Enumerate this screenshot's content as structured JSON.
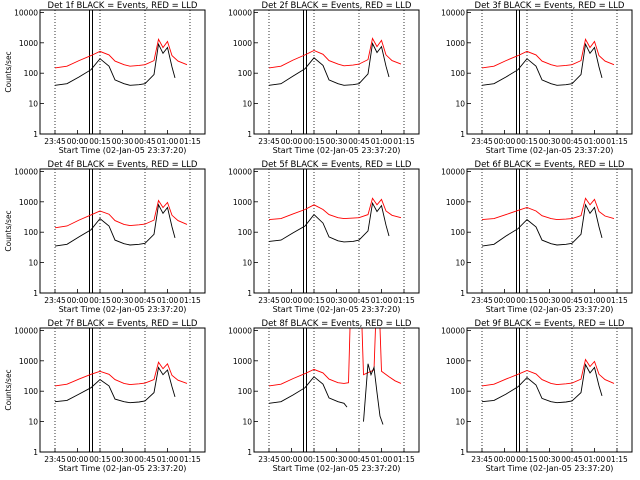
{
  "chart_data": [
    {
      "type": "line",
      "title": "Det 1f BLACK = Events, RED = LLD",
      "xlabel": "Start Time (02-Jan-05 23:37:20)",
      "ylabel": "Counts/sec",
      "yscale": "log",
      "ylim": [
        1,
        12000
      ],
      "xlim": [
        -10,
        100
      ],
      "x_tick_labels": [
        "23:45",
        "00:00",
        "00:15",
        "00:30",
        "00:45",
        "01:00",
        "01:15"
      ],
      "y_tick_labels": [
        "1",
        "10",
        "100",
        "1000",
        "10000"
      ],
      "series": [
        {
          "color": "#ff0000",
          "x": [
            0,
            8,
            16,
            24,
            30,
            36,
            40,
            46,
            50,
            56,
            60,
            66,
            69,
            72,
            75,
            78,
            82,
            88
          ],
          "y": [
            150,
            170,
            260,
            380,
            520,
            400,
            250,
            190,
            170,
            180,
            190,
            260,
            1300,
            700,
            1100,
            380,
            250,
            190
          ]
        },
        {
          "color": "#000000",
          "x": [
            0,
            8,
            16,
            24,
            30,
            36,
            40,
            46,
            50,
            56,
            60,
            66,
            69,
            72,
            75,
            78,
            80
          ],
          "y": [
            40,
            45,
            75,
            130,
            300,
            170,
            60,
            45,
            40,
            42,
            45,
            90,
            900,
            450,
            700,
            160,
            70
          ]
        }
      ]
    },
    {
      "type": "line",
      "title": "Det 2f BLACK = Events, RED = LLD",
      "xlabel": "Start Time (02-Jan-05 23:37:20)",
      "ylabel": "",
      "yscale": "log",
      "ylim": [
        1,
        12000
      ],
      "xlim": [
        -10,
        100
      ],
      "x_tick_labels": [
        "23:45",
        "00:00",
        "00:15",
        "00:30",
        "00:45",
        "01:00",
        "01:15"
      ],
      "y_tick_labels": [
        "1",
        "10",
        "100",
        "1000",
        "10000"
      ],
      "series": [
        {
          "color": "#ff0000",
          "x": [
            0,
            8,
            16,
            24,
            30,
            36,
            40,
            46,
            50,
            56,
            60,
            66,
            69,
            72,
            75,
            78,
            82,
            88
          ],
          "y": [
            150,
            170,
            270,
            400,
            560,
            420,
            260,
            200,
            175,
            185,
            200,
            280,
            1400,
            750,
            1200,
            400,
            260,
            200
          ]
        },
        {
          "color": "#000000",
          "x": [
            0,
            8,
            16,
            24,
            30,
            36,
            40,
            46,
            50,
            56,
            60,
            66,
            69,
            72,
            75,
            78,
            80
          ],
          "y": [
            40,
            45,
            80,
            140,
            320,
            180,
            60,
            45,
            40,
            42,
            45,
            95,
            950,
            480,
            750,
            170,
            75
          ]
        }
      ]
    },
    {
      "type": "line",
      "title": "Det 3f BLACK = Events, RED = LLD",
      "xlabel": "Start Time (02-Jan-05 23:37:20)",
      "ylabel": "",
      "yscale": "log",
      "ylim": [
        1,
        12000
      ],
      "xlim": [
        -10,
        100
      ],
      "x_tick_labels": [
        "23:45",
        "00:00",
        "00:15",
        "00:30",
        "00:45",
        "01:00",
        "01:15"
      ],
      "y_tick_labels": [
        "1",
        "10",
        "100",
        "1000",
        "10000"
      ],
      "series": [
        {
          "color": "#ff0000",
          "x": [
            0,
            8,
            16,
            24,
            30,
            36,
            40,
            46,
            50,
            56,
            60,
            66,
            69,
            72,
            75,
            78,
            82,
            88
          ],
          "y": [
            150,
            170,
            260,
            380,
            520,
            400,
            250,
            190,
            170,
            180,
            190,
            260,
            1300,
            700,
            1100,
            380,
            250,
            190
          ]
        },
        {
          "color": "#000000",
          "x": [
            0,
            8,
            16,
            24,
            30,
            36,
            40,
            46,
            50,
            56,
            60,
            66,
            69,
            72,
            75,
            78,
            80
          ],
          "y": [
            40,
            45,
            75,
            130,
            300,
            170,
            60,
            45,
            40,
            42,
            45,
            90,
            900,
            450,
            700,
            160,
            70
          ]
        }
      ]
    },
    {
      "type": "line",
      "title": "Det 4f BLACK = Events, RED = LLD",
      "xlabel": "Start Time (02-Jan-05 23:37:20)",
      "ylabel": "Counts/sec",
      "yscale": "log",
      "ylim": [
        1,
        12000
      ],
      "xlim": [
        -10,
        100
      ],
      "x_tick_labels": [
        "23:45",
        "00:00",
        "00:15",
        "00:30",
        "00:45",
        "01:00",
        "01:15"
      ],
      "y_tick_labels": [
        "1",
        "10",
        "100",
        "1000",
        "10000"
      ],
      "series": [
        {
          "color": "#ff0000",
          "x": [
            0,
            8,
            16,
            24,
            30,
            36,
            40,
            46,
            50,
            56,
            60,
            66,
            69,
            72,
            75,
            78,
            82,
            88
          ],
          "y": [
            140,
            160,
            250,
            370,
            500,
            390,
            240,
            180,
            165,
            175,
            185,
            250,
            1100,
            650,
            950,
            360,
            240,
            180
          ]
        },
        {
          "color": "#000000",
          "x": [
            0,
            8,
            16,
            24,
            30,
            36,
            40,
            46,
            50,
            56,
            60,
            66,
            69,
            72,
            75,
            78,
            80
          ],
          "y": [
            35,
            40,
            70,
            120,
            280,
            160,
            55,
            42,
            38,
            40,
            43,
            85,
            800,
            420,
            650,
            150,
            65
          ]
        }
      ]
    },
    {
      "type": "line",
      "title": "Det 5f BLACK = Events, RED = LLD",
      "xlabel": "Start Time (02-Jan-05 23:37:20)",
      "ylabel": "",
      "yscale": "log",
      "ylim": [
        1,
        12000
      ],
      "xlim": [
        -10,
        100
      ],
      "x_tick_labels": [
        "23:45",
        "00:00",
        "00:15",
        "00:30",
        "00:45",
        "01:00",
        "01:15"
      ],
      "y_tick_labels": [
        "1",
        "10",
        "100",
        "1000",
        "10000"
      ],
      "series": [
        {
          "color": "#ff0000",
          "x": [
            0,
            8,
            16,
            24,
            30,
            36,
            40,
            46,
            50,
            56,
            60,
            66,
            69,
            72,
            75,
            78,
            82,
            88
          ],
          "y": [
            260,
            280,
            400,
            560,
            800,
            560,
            380,
            300,
            280,
            290,
            300,
            380,
            1300,
            800,
            1200,
            500,
            360,
            300
          ]
        },
        {
          "color": "#000000",
          "x": [
            0,
            8,
            16,
            24,
            30,
            36,
            40,
            46,
            50,
            56,
            60,
            66,
            69,
            72,
            75,
            78,
            80
          ],
          "y": [
            50,
            55,
            95,
            160,
            380,
            200,
            70,
            52,
            48,
            50,
            55,
            110,
            900,
            480,
            750,
            170,
            75
          ]
        }
      ]
    },
    {
      "type": "line",
      "title": "Det 6f BLACK = Events, RED = LLD",
      "xlabel": "Start Time (02-Jan-05 23:37:20)",
      "ylabel": "",
      "yscale": "log",
      "ylim": [
        1,
        12000
      ],
      "xlim": [
        -10,
        100
      ],
      "x_tick_labels": [
        "23:45",
        "00:00",
        "00:15",
        "00:30",
        "00:45",
        "01:00",
        "01:15"
      ],
      "y_tick_labels": [
        "1",
        "10",
        "100",
        "1000",
        "10000"
      ],
      "series": [
        {
          "color": "#ff0000",
          "x": [
            0,
            8,
            16,
            24,
            30,
            36,
            40,
            46,
            50,
            56,
            60,
            66,
            69,
            72,
            75,
            78,
            82,
            88
          ],
          "y": [
            260,
            280,
            380,
            520,
            650,
            500,
            350,
            280,
            260,
            270,
            280,
            350,
            1300,
            800,
            1200,
            480,
            340,
            280
          ]
        },
        {
          "color": "#000000",
          "x": [
            0,
            8,
            16,
            24,
            30,
            36,
            40,
            46,
            50,
            56,
            60,
            66,
            69,
            72,
            75,
            78,
            80
          ],
          "y": [
            35,
            40,
            75,
            130,
            260,
            150,
            55,
            42,
            38,
            40,
            43,
            85,
            800,
            420,
            650,
            150,
            65
          ]
        }
      ]
    },
    {
      "type": "line",
      "title": "Det 7f BLACK = Events, RED = LLD",
      "xlabel": "Start Time (02-Jan-05 23:37:20)",
      "ylabel": "Counts/sec",
      "yscale": "log",
      "ylim": [
        1,
        12000
      ],
      "xlim": [
        -10,
        100
      ],
      "x_tick_labels": [
        "23:45",
        "00:00",
        "00:15",
        "00:30",
        "00:45",
        "01:00",
        "01:15"
      ],
      "y_tick_labels": [
        "1",
        "10",
        "100",
        "1000",
        "10000"
      ],
      "series": [
        {
          "color": "#ff0000",
          "x": [
            0,
            8,
            16,
            24,
            30,
            36,
            40,
            46,
            50,
            56,
            60,
            66,
            69,
            72,
            75,
            78,
            82,
            88
          ],
          "y": [
            150,
            170,
            250,
            360,
            450,
            360,
            240,
            180,
            165,
            175,
            185,
            240,
            900,
            550,
            800,
            330,
            230,
            180
          ]
        },
        {
          "color": "#000000",
          "x": [
            0,
            8,
            16,
            24,
            30,
            36,
            40,
            46,
            50,
            56,
            60,
            66,
            69,
            72,
            75,
            78,
            80
          ],
          "y": [
            45,
            50,
            80,
            130,
            240,
            150,
            55,
            45,
            42,
            44,
            48,
            90,
            600,
            350,
            500,
            140,
            65
          ]
        }
      ]
    },
    {
      "type": "line",
      "title": "Det 8f BLACK = Events, RED = LLD",
      "xlabel": "Start Time (02-Jan-05 23:37:20)",
      "ylabel": "",
      "yscale": "log",
      "ylim": [
        1,
        12000
      ],
      "xlim": [
        -10,
        100
      ],
      "x_tick_labels": [
        "23:45",
        "00:00",
        "00:15",
        "00:30",
        "00:45",
        "01:00",
        "01:15"
      ],
      "y_tick_labels": [
        "1",
        "10",
        "100",
        "1000",
        "10000"
      ],
      "series": [
        {
          "color": "#ff0000",
          "x": [
            0,
            8,
            16,
            24,
            30,
            36,
            40,
            46,
            50,
            53,
            54,
            62,
            63,
            70,
            71,
            74,
            75,
            80,
            84,
            88
          ],
          "y": [
            150,
            170,
            260,
            380,
            520,
            400,
            250,
            190,
            180,
            190,
            12000,
            12000,
            350,
            500,
            12000,
            12000,
            450,
            300,
            220,
            180
          ]
        },
        {
          "color": "#000000",
          "x": [
            0,
            8,
            16,
            24,
            30,
            36,
            40,
            46,
            50,
            52,
            54,
            62,
            63,
            66,
            68,
            70,
            72,
            74,
            76
          ],
          "y": [
            40,
            45,
            75,
            130,
            300,
            170,
            60,
            45,
            40,
            30,
            null,
            null,
            10,
            800,
            350,
            600,
            90,
            15,
            8
          ]
        }
      ]
    },
    {
      "type": "line",
      "title": "Det 9f BLACK = Events, RED = LLD",
      "xlabel": "Start Time (02-Jan-05 23:37:20)",
      "ylabel": "",
      "yscale": "log",
      "ylim": [
        1,
        12000
      ],
      "xlim": [
        -10,
        100
      ],
      "x_tick_labels": [
        "23:45",
        "00:00",
        "00:15",
        "00:30",
        "00:45",
        "01:00",
        "01:15"
      ],
      "y_tick_labels": [
        "1",
        "10",
        "100",
        "1000",
        "10000"
      ],
      "series": [
        {
          "color": "#ff0000",
          "x": [
            0,
            8,
            16,
            24,
            30,
            36,
            40,
            46,
            50,
            56,
            60,
            66,
            69,
            72,
            75,
            78,
            82,
            88
          ],
          "y": [
            150,
            170,
            250,
            360,
            480,
            370,
            240,
            180,
            165,
            175,
            185,
            250,
            1100,
            650,
            950,
            360,
            240,
            180
          ]
        },
        {
          "color": "#000000",
          "x": [
            0,
            8,
            16,
            24,
            30,
            36,
            40,
            46,
            50,
            56,
            60,
            66,
            69,
            72,
            75,
            78,
            80
          ],
          "y": [
            45,
            50,
            80,
            140,
            280,
            160,
            58,
            45,
            42,
            44,
            48,
            90,
            750,
            400,
            600,
            150,
            70
          ]
        }
      ]
    }
  ]
}
